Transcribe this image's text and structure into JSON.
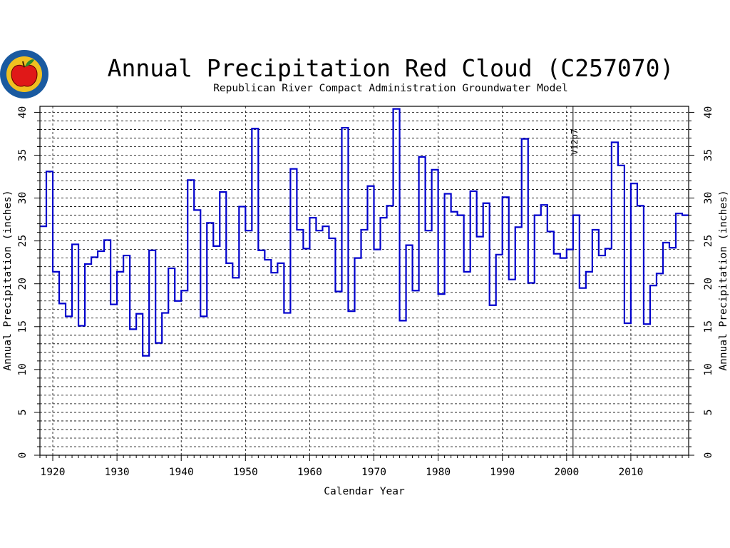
{
  "logo": {
    "icon": "apple-logo-icon",
    "colors": {
      "ring": "#1a5aa0",
      "inner": "#f0c020",
      "apple": "#e01818",
      "leaf": "#2a8a2a"
    }
  },
  "chart_data": {
    "type": "line",
    "style": "step",
    "title": "Annual Precipitation Red Cloud (C257070)",
    "subtitle": "Republican River Compact Administration Groundwater Model",
    "xlabel": "Calendar Year",
    "ylabel_left": "Annual Precipitation (inches)",
    "ylabel_right": "Annual Precipitation (inches)",
    "xlim": [
      1918,
      2019
    ],
    "ylim": [
      0,
      40.7
    ],
    "xticks": [
      "1920",
      "1930",
      "1940",
      "1950",
      "1960",
      "1970",
      "1980",
      "1990",
      "2000",
      "2010"
    ],
    "yticks": [
      "0",
      "5",
      "10",
      "15",
      "20",
      "25",
      "30",
      "35",
      "40"
    ],
    "grid": true,
    "line_color": "#0000cc",
    "annotation": {
      "label": "V12p7",
      "year": 2001
    },
    "series": [
      {
        "x": [
          1918,
          1919,
          1920,
          1921,
          1922,
          1923,
          1924,
          1925,
          1926,
          1927,
          1928,
          1929,
          1930,
          1931,
          1932,
          1933,
          1934,
          1935,
          1936,
          1937,
          1938,
          1939,
          1940,
          1941,
          1942,
          1943,
          1944,
          1945,
          1946,
          1947,
          1948,
          1949,
          1950,
          1951,
          1952,
          1953,
          1954,
          1955,
          1956,
          1957,
          1958,
          1959,
          1960,
          1961,
          1962,
          1963,
          1964,
          1965,
          1966,
          1967,
          1968,
          1969,
          1970,
          1971,
          1972,
          1973,
          1974,
          1975,
          1976,
          1977,
          1978,
          1979,
          1980,
          1981,
          1982,
          1983,
          1984,
          1985,
          1986,
          1987,
          1988,
          1989,
          1990,
          1991,
          1992,
          1993,
          1994,
          1995,
          1996,
          1997,
          1998,
          1999,
          2000,
          2001,
          2002,
          2003,
          2004,
          2005,
          2006,
          2007,
          2008,
          2009,
          2010,
          2011,
          2012,
          2013,
          2014,
          2015,
          2016,
          2017,
          2018
        ],
        "values": [
          26.7,
          33.1,
          21.4,
          17.7,
          16.2,
          24.6,
          15.1,
          22.3,
          23.1,
          23.8,
          25.1,
          17.6,
          21.4,
          23.3,
          14.7,
          16.5,
          11.6,
          23.9,
          13.1,
          16.6,
          21.8,
          18.0,
          19.2,
          32.1,
          28.6,
          16.2,
          27.1,
          24.4,
          30.7,
          22.4,
          20.7,
          29.0,
          26.2,
          38.1,
          23.9,
          22.8,
          21.3,
          22.4,
          16.6,
          33.4,
          26.3,
          24.1,
          27.7,
          26.2,
          26.7,
          25.3,
          19.1,
          38.2,
          16.8,
          23.0,
          26.3,
          31.4,
          24.0,
          27.7,
          29.1,
          40.4,
          15.7,
          24.5,
          19.2,
          34.8,
          26.2,
          33.3,
          18.8,
          30.5,
          28.4,
          28.0,
          21.4,
          30.8,
          25.5,
          29.4,
          17.5,
          23.4,
          30.1,
          20.5,
          26.6,
          36.9,
          20.1,
          28.0,
          29.2,
          26.1,
          23.5,
          23.0,
          24.0,
          28.0,
          19.5,
          21.4,
          26.3,
          23.3,
          24.1,
          36.5,
          33.8,
          15.4,
          31.7,
          29.1,
          15.3,
          19.8,
          21.2,
          24.8,
          24.2,
          28.2,
          28.0
        ]
      }
    ]
  }
}
